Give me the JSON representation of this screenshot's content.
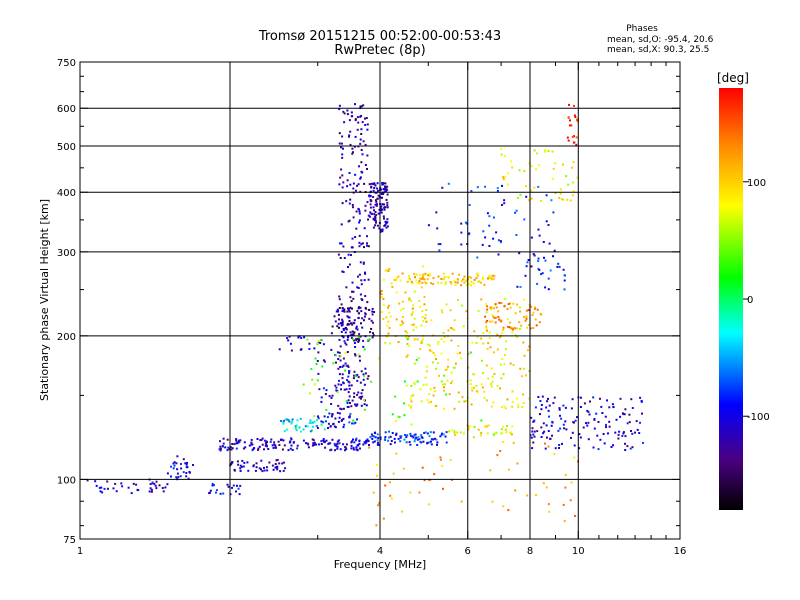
{
  "chart_data": {
    "type": "scatter",
    "title": "Tromsø 20151215 00:52:00-00:53:43",
    "subtitle": "RwPretec (8p)",
    "phases_header": "Phases",
    "phases_o": "mean, sd,O: -95.4, 20.6",
    "phases_x": "mean, sd,X:  90.3, 25.5",
    "xlabel": "Frequency [MHz]",
    "ylabel": "Stationary phase Virtual Height [km]",
    "x_scale": "log",
    "y_scale": "log",
    "xlim": [
      1,
      16
    ],
    "ylim": [
      75,
      750
    ],
    "x_ticks": [
      1,
      2,
      4,
      6,
      8,
      10,
      16
    ],
    "x_tick_labels": [
      "1",
      "2",
      "4",
      "6",
      "8",
      "10",
      "16"
    ],
    "x_grid": [
      2,
      4,
      6,
      8,
      10
    ],
    "y_ticks": [
      75,
      100,
      200,
      300,
      400,
      500,
      600,
      750
    ],
    "y_tick_labels": [
      "75",
      "100",
      "200",
      "300",
      "400",
      "500",
      "600",
      "750"
    ],
    "y_grid": [
      100,
      200,
      300,
      400,
      500,
      600
    ],
    "grid": true,
    "colorbar": {
      "label": "[deg]",
      "range": [
        -180,
        180
      ],
      "ticks": [
        100,
        0,
        -100
      ],
      "tick_labels": [
        "100",
        "0",
        "-100"
      ]
    },
    "clusters": [
      {
        "f": [
          1.0,
          1.5
        ],
        "h": [
          93,
          100
        ],
        "phase": -110,
        "n": 40
      },
      {
        "f": [
          1.5,
          1.7
        ],
        "h": [
          100,
          112
        ],
        "phase": -105,
        "n": 30
      },
      {
        "f": [
          1.75,
          2.1
        ],
        "h": [
          93,
          98
        ],
        "phase": -100,
        "n": 20
      },
      {
        "f": [
          1.9,
          3.8
        ],
        "h": [
          115,
          122
        ],
        "phase": -110,
        "n": 160
      },
      {
        "f": [
          3.8,
          5.5
        ],
        "h": [
          118,
          126
        ],
        "phase": -85,
        "n": 90
      },
      {
        "f": [
          5.5,
          7.5
        ],
        "h": [
          122,
          130
        ],
        "phase": 80,
        "n": 40
      },
      {
        "f": [
          2.0,
          2.6
        ],
        "h": [
          104,
          110
        ],
        "phase": -115,
        "n": 50
      },
      {
        "f": [
          2.5,
          3.1
        ],
        "h": [
          126,
          134
        ],
        "phase": -35,
        "n": 40
      },
      {
        "f": [
          3.0,
          3.6
        ],
        "h": [
          128,
          138
        ],
        "phase": -100,
        "n": 40
      },
      {
        "f": [
          3.3,
          3.8
        ],
        "h": [
          140,
          620
        ],
        "phase": -120,
        "n": 260
      },
      {
        "f": [
          3.8,
          4.15
        ],
        "h": [
          330,
          420
        ],
        "phase": -120,
        "n": 120
      },
      {
        "f": [
          3.2,
          3.9
        ],
        "h": [
          195,
          230
        ],
        "phase": -130,
        "n": 80
      },
      {
        "f": [
          3.0,
          3.6
        ],
        "h": [
          140,
          200
        ],
        "phase": -110,
        "n": 60
      },
      {
        "f": [
          2.5,
          3.0
        ],
        "h": [
          185,
          200
        ],
        "phase": -115,
        "n": 15
      },
      {
        "f": [
          4.0,
          5.0
        ],
        "h": [
          190,
          280
        ],
        "phase": 95,
        "n": 80
      },
      {
        "f": [
          4.5,
          6.8
        ],
        "h": [
          255,
          270
        ],
        "phase": 100,
        "n": 90
      },
      {
        "f": [
          4.5,
          8.0
        ],
        "h": [
          140,
          240
        ],
        "phase": 90,
        "n": 220
      },
      {
        "f": [
          6.5,
          8.5
        ],
        "h": [
          205,
          235
        ],
        "phase": 130,
        "n": 60
      },
      {
        "f": [
          7.5,
          9.5
        ],
        "h": [
          250,
          300
        ],
        "phase": -90,
        "n": 30
      },
      {
        "f": [
          7.0,
          10.0
        ],
        "h": [
          380,
          500
        ],
        "phase": 80,
        "n": 50
      },
      {
        "f": [
          8.0,
          13.5
        ],
        "h": [
          115,
          150
        ],
        "phase": -110,
        "n": 150
      },
      {
        "f": [
          9.5,
          10.0
        ],
        "h": [
          500,
          620
        ],
        "phase": 170,
        "n": 20
      },
      {
        "f": [
          3.8,
          10.0
        ],
        "h": [
          80,
          120
        ],
        "phase": 120,
        "n": 60
      },
      {
        "f": [
          2.8,
          6.5
        ],
        "h": [
          130,
          200
        ],
        "phase": 40,
        "n": 60
      },
      {
        "f": [
          5.0,
          9.0
        ],
        "h": [
          290,
          420
        ],
        "phase": -90,
        "n": 60
      }
    ]
  }
}
